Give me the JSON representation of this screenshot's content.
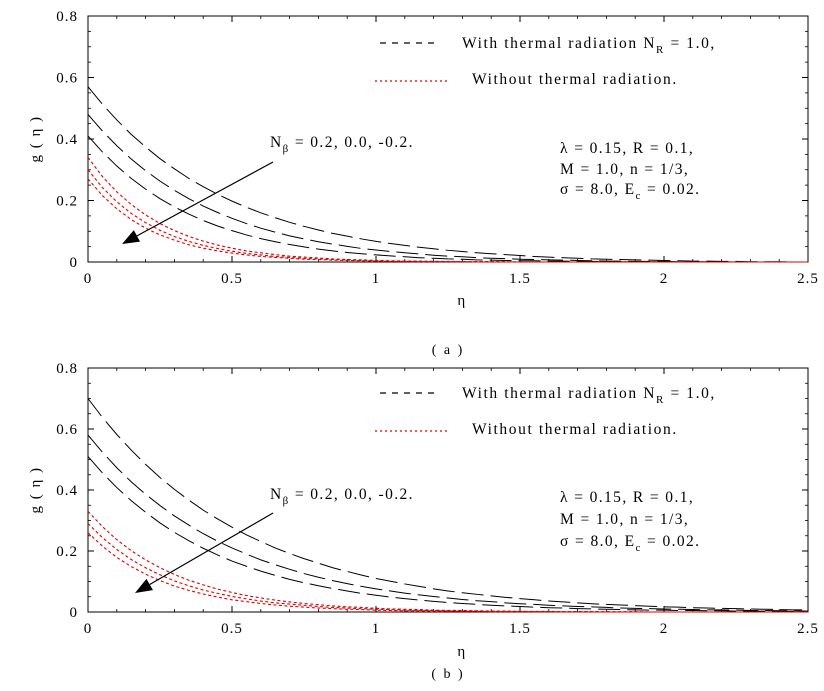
{
  "chart_data": [
    {
      "type": "line",
      "panel_label": "( a )",
      "xlabel": "η",
      "ylabel": "g ( η )",
      "xlim": [
        0,
        2.5
      ],
      "ylim": [
        0,
        0.8
      ],
      "x_ticks": [
        "0",
        "0.5",
        "1",
        "1.5",
        "2",
        "2.5"
      ],
      "y_ticks": [
        "0",
        "0.2",
        "0.4",
        "0.6",
        "0.8"
      ],
      "grid": false,
      "legend_position": "top-right",
      "legend": {
        "radiation": {
          "main": "With thermal radiation  N",
          "sub": "R",
          "tail": " = 1.0,"
        },
        "no_radiation": {
          "main": "Without thermal radiation."
        }
      },
      "annotation": {
        "main": "N",
        "sub": "β",
        "tail": " = 0.2, 0.0, -0.2."
      },
      "params": [
        {
          "main": "λ = 0.15, R = 0.1,"
        },
        {
          "main": "M = 1.0, n = 1/3,"
        },
        {
          "main": "σ = 8.0, E",
          "sub": "c",
          "tail": " = 0.02."
        }
      ],
      "x": [
        0,
        0.05,
        0.1,
        0.15,
        0.2,
        0.25,
        0.3,
        0.35,
        0.4,
        0.45,
        0.5,
        0.55,
        0.6,
        0.65,
        0.7,
        0.75,
        0.8,
        0.85,
        0.9,
        0.95,
        1,
        1.05,
        1.1,
        1.15,
        1.2,
        1.25,
        1.3,
        1.35,
        1.4,
        1.45,
        1.5,
        1.55,
        1.6,
        1.65,
        1.7,
        1.75,
        1.8,
        1.85,
        1.9,
        1.95,
        2,
        2.05,
        2.1,
        2.15,
        2.2,
        2.25,
        2.3,
        2.35,
        2.4,
        2.45,
        2.5
      ],
      "series": [
        {
          "group": "with_radiation",
          "color": "#000000",
          "values": [
            0.57,
            0.513,
            0.462,
            0.415,
            0.374,
            0.336,
            0.303,
            0.272,
            0.245,
            0.22,
            0.198,
            0.178,
            0.16,
            0.144,
            0.129,
            0.116,
            0.104,
            0.093,
            0.084,
            0.075,
            0.067,
            0.06,
            0.054,
            0.048,
            0.043,
            0.038,
            0.034,
            0.03,
            0.027,
            0.024,
            0.021,
            0.018,
            0.016,
            0.014,
            0.012,
            0.01,
            0.009,
            0.008,
            0.007,
            0.006,
            0.005,
            0.004,
            0.003,
            0.003,
            0.002,
            0.002,
            0.001,
            0.001,
            0.001,
            0.0,
            0.0
          ]
        },
        {
          "group": "with_radiation",
          "color": "#000000",
          "values": [
            0.48,
            0.426,
            0.378,
            0.335,
            0.297,
            0.263,
            0.233,
            0.206,
            0.182,
            0.161,
            0.142,
            0.125,
            0.11,
            0.097,
            0.085,
            0.075,
            0.066,
            0.058,
            0.051,
            0.044,
            0.039,
            0.034,
            0.03,
            0.026,
            0.022,
            0.019,
            0.017,
            0.014,
            0.012,
            0.011,
            0.009,
            0.008,
            0.007,
            0.006,
            0.005,
            0.004,
            0.003,
            0.003,
            0.002,
            0.002,
            0.002,
            0.001,
            0.001,
            0.001,
            0.001,
            0.0,
            0.0,
            0.0,
            0.0,
            0.0,
            0.0
          ]
        },
        {
          "group": "with_radiation",
          "color": "#000000",
          "values": [
            0.41,
            0.358,
            0.312,
            0.272,
            0.237,
            0.206,
            0.179,
            0.156,
            0.135,
            0.117,
            0.102,
            0.088,
            0.076,
            0.066,
            0.057,
            0.049,
            0.042,
            0.036,
            0.031,
            0.027,
            0.023,
            0.02,
            0.017,
            0.014,
            0.012,
            0.01,
            0.009,
            0.007,
            0.006,
            0.005,
            0.004,
            0.004,
            0.003,
            0.003,
            0.002,
            0.002,
            0.001,
            0.001,
            0.001,
            0.001,
            0.001,
            0.0,
            0.0,
            0.0,
            0.0,
            0.0,
            0.0,
            0.0,
            0.0,
            0.0,
            0.0
          ]
        },
        {
          "group": "without_radiation",
          "color": "#e00000",
          "values": [
            0.34,
            0.278,
            0.228,
            0.187,
            0.153,
            0.125,
            0.102,
            0.083,
            0.068,
            0.055,
            0.045,
            0.036,
            0.03,
            0.024,
            0.019,
            0.016,
            0.013,
            0.01,
            0.008,
            0.007,
            0.005,
            0.004,
            0.003,
            0.003,
            0.002,
            0.002,
            0.001,
            0.001,
            0.001,
            0.001,
            0.0,
            0.0,
            0.0,
            0.0,
            0.0,
            0.0,
            0.0,
            0.0,
            0.0,
            0.0,
            0.0,
            0.0,
            0.0,
            0.0,
            0.0,
            0.0,
            0.0,
            0.0,
            0.0,
            0.0,
            0.0
          ]
        },
        {
          "group": "without_radiation",
          "color": "#e00000",
          "values": [
            0.3,
            0.242,
            0.196,
            0.158,
            0.128,
            0.103,
            0.083,
            0.067,
            0.054,
            0.044,
            0.035,
            0.028,
            0.023,
            0.018,
            0.015,
            0.012,
            0.01,
            0.008,
            0.006,
            0.005,
            0.004,
            0.003,
            0.002,
            0.002,
            0.002,
            0.001,
            0.001,
            0.001,
            0.001,
            0.0,
            0.0,
            0.0,
            0.0,
            0.0,
            0.0,
            0.0,
            0.0,
            0.0,
            0.0,
            0.0,
            0.0,
            0.0,
            0.0,
            0.0,
            0.0,
            0.0,
            0.0,
            0.0,
            0.0,
            0.0,
            0.0
          ]
        },
        {
          "group": "without_radiation",
          "color": "#e00000",
          "values": [
            0.27,
            0.216,
            0.173,
            0.138,
            0.11,
            0.088,
            0.071,
            0.056,
            0.045,
            0.036,
            0.029,
            0.023,
            0.018,
            0.015,
            0.012,
            0.009,
            0.008,
            0.006,
            0.005,
            0.004,
            0.003,
            0.002,
            0.002,
            0.001,
            0.001,
            0.001,
            0.001,
            0.0,
            0.0,
            0.0,
            0.0,
            0.0,
            0.0,
            0.0,
            0.0,
            0.0,
            0.0,
            0.0,
            0.0,
            0.0,
            0.0,
            0.0,
            0.0,
            0.0,
            0.0,
            0.0,
            0.0,
            0.0,
            0.0,
            0.0,
            0.0
          ]
        }
      ]
    },
    {
      "type": "line",
      "panel_label": "( b )",
      "xlabel": "η",
      "ylabel": "g ( η )",
      "xlim": [
        0,
        2.5
      ],
      "ylim": [
        0,
        0.8
      ],
      "x_ticks": [
        "0",
        "0.5",
        "1",
        "1.5",
        "2",
        "2.5"
      ],
      "y_ticks": [
        "0",
        "0.2",
        "0.4",
        "0.6",
        "0.8"
      ],
      "grid": false,
      "legend_position": "top-right",
      "legend": {
        "radiation": {
          "main": "With thermal radiation  N",
          "sub": "R",
          "tail": " = 1.0,"
        },
        "no_radiation": {
          "main": "Without thermal radiation."
        }
      },
      "annotation": {
        "main": "N",
        "sub": "β",
        "tail": " = 0.2, 0.0, -0.2."
      },
      "params": [
        {
          "main": "λ = 0.15, R = 0.1,"
        },
        {
          "main": "M = 1.0, n = 1/3,"
        },
        {
          "main": "σ = 8.0, E",
          "sub": "c",
          "tail": " = 0.02."
        }
      ],
      "x": [
        0,
        0.05,
        0.1,
        0.15,
        0.2,
        0.25,
        0.3,
        0.35,
        0.4,
        0.45,
        0.5,
        0.55,
        0.6,
        0.65,
        0.7,
        0.75,
        0.8,
        0.85,
        0.9,
        0.95,
        1,
        1.05,
        1.1,
        1.15,
        1.2,
        1.25,
        1.3,
        1.35,
        1.4,
        1.45,
        1.5,
        1.55,
        1.6,
        1.65,
        1.7,
        1.75,
        1.8,
        1.85,
        1.9,
        1.95,
        2,
        2.05,
        2.1,
        2.15,
        2.2,
        2.25,
        2.3,
        2.35,
        2.4,
        2.45,
        2.5
      ],
      "series": [
        {
          "group": "with_radiation",
          "color": "#000000",
          "values": [
            0.7,
            0.638,
            0.582,
            0.531,
            0.484,
            0.441,
            0.402,
            0.367,
            0.334,
            0.305,
            0.278,
            0.253,
            0.231,
            0.21,
            0.192,
            0.175,
            0.16,
            0.145,
            0.133,
            0.121,
            0.11,
            0.101,
            0.092,
            0.084,
            0.076,
            0.069,
            0.063,
            0.058,
            0.053,
            0.048,
            0.044,
            0.04,
            0.036,
            0.033,
            0.03,
            0.027,
            0.025,
            0.023,
            0.021,
            0.019,
            0.017,
            0.016,
            0.014,
            0.013,
            0.012,
            0.011,
            0.01,
            0.009,
            0.008,
            0.007,
            0.007
          ]
        },
        {
          "group": "with_radiation",
          "color": "#000000",
          "values": [
            0.58,
            0.524,
            0.473,
            0.427,
            0.386,
            0.349,
            0.315,
            0.285,
            0.257,
            0.232,
            0.21,
            0.19,
            0.171,
            0.155,
            0.14,
            0.126,
            0.114,
            0.103,
            0.093,
            0.084,
            0.076,
            0.069,
            0.062,
            0.056,
            0.051,
            0.046,
            0.041,
            0.037,
            0.034,
            0.03,
            0.027,
            0.025,
            0.022,
            0.02,
            0.018,
            0.017,
            0.015,
            0.013,
            0.012,
            0.011,
            0.01,
            0.009,
            0.008,
            0.007,
            0.007,
            0.006,
            0.005,
            0.005,
            0.004,
            0.004,
            0.003
          ]
        },
        {
          "group": "with_radiation",
          "color": "#000000",
          "values": [
            0.51,
            0.456,
            0.408,
            0.365,
            0.327,
            0.292,
            0.261,
            0.234,
            0.209,
            0.187,
            0.167,
            0.15,
            0.134,
            0.12,
            0.107,
            0.096,
            0.086,
            0.077,
            0.069,
            0.061,
            0.055,
            0.049,
            0.044,
            0.039,
            0.035,
            0.031,
            0.028,
            0.025,
            0.022,
            0.02,
            0.018,
            0.016,
            0.014,
            0.013,
            0.011,
            0.01,
            0.009,
            0.008,
            0.007,
            0.006,
            0.006,
            0.005,
            0.005,
            0.004,
            0.004,
            0.003,
            0.003,
            0.003,
            0.002,
            0.002,
            0.002
          ]
        },
        {
          "group": "without_radiation",
          "color": "#e00000",
          "values": [
            0.33,
            0.28,
            0.237,
            0.201,
            0.171,
            0.145,
            0.123,
            0.104,
            0.089,
            0.075,
            0.064,
            0.054,
            0.046,
            0.039,
            0.033,
            0.028,
            0.024,
            0.02,
            0.017,
            0.015,
            0.012,
            0.01,
            0.009,
            0.008,
            0.006,
            0.005,
            0.005,
            0.004,
            0.003,
            0.003,
            0.002,
            0.002,
            0.002,
            0.001,
            0.001,
            0.001,
            0.001,
            0.001,
            0.001,
            0.0,
            0.0,
            0.0,
            0.0,
            0.0,
            0.0,
            0.0,
            0.0,
            0.0,
            0.0,
            0.0,
            0.0
          ]
        },
        {
          "group": "without_radiation",
          "color": "#e00000",
          "values": [
            0.29,
            0.244,
            0.205,
            0.172,
            0.145,
            0.122,
            0.102,
            0.086,
            0.072,
            0.061,
            0.051,
            0.043,
            0.036,
            0.03,
            0.026,
            0.022,
            0.018,
            0.015,
            0.013,
            0.011,
            0.009,
            0.008,
            0.006,
            0.005,
            0.005,
            0.004,
            0.003,
            0.003,
            0.002,
            0.002,
            0.002,
            0.001,
            0.001,
            0.001,
            0.001,
            0.001,
            0.0,
            0.0,
            0.0,
            0.0,
            0.0,
            0.0,
            0.0,
            0.0,
            0.0,
            0.0,
            0.0,
            0.0,
            0.0,
            0.0,
            0.0
          ]
        },
        {
          "group": "without_radiation",
          "color": "#e00000",
          "values": [
            0.26,
            0.216,
            0.179,
            0.149,
            0.124,
            0.103,
            0.085,
            0.071,
            0.059,
            0.049,
            0.04,
            0.034,
            0.028,
            0.023,
            0.019,
            0.016,
            0.013,
            0.011,
            0.009,
            0.008,
            0.006,
            0.005,
            0.004,
            0.004,
            0.003,
            0.003,
            0.002,
            0.002,
            0.001,
            0.001,
            0.001,
            0.001,
            0.001,
            0.0,
            0.0,
            0.0,
            0.0,
            0.0,
            0.0,
            0.0,
            0.0,
            0.0,
            0.0,
            0.0,
            0.0,
            0.0,
            0.0,
            0.0,
            0.0,
            0.0,
            0.0
          ]
        }
      ]
    }
  ]
}
